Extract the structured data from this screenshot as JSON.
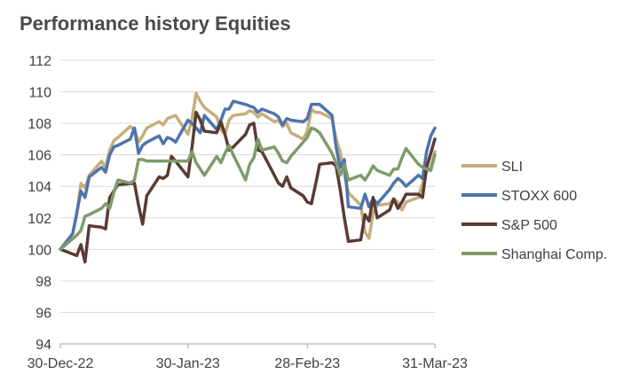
{
  "chart_data": {
    "type": "line",
    "title": "Performance history Equities",
    "xlabel": "",
    "ylabel": "",
    "ylim": [
      94,
      112
    ],
    "yticks": [
      94,
      96,
      98,
      100,
      102,
      104,
      106,
      108,
      110,
      112
    ],
    "xlim": [
      "2022-12-30",
      "2023-03-31"
    ],
    "xtick_labels": [
      "30-Dec-22",
      "30-Jan-23",
      "28-Feb-23",
      "31-Mar-23"
    ],
    "grid": "horizontal",
    "legend_position": "right",
    "series": [
      {
        "name": "SLI",
        "color": "#C5AE7C",
        "x": [
          "2022-12-30",
          "2023-01-02",
          "2023-01-03",
          "2023-01-04",
          "2023-01-05",
          "2023-01-06",
          "2023-01-09",
          "2023-01-10",
          "2023-01-11",
          "2023-01-12",
          "2023-01-13",
          "2023-01-16",
          "2023-01-17",
          "2023-01-18",
          "2023-01-19",
          "2023-01-20",
          "2023-01-23",
          "2023-01-24",
          "2023-01-25",
          "2023-01-26",
          "2023-01-27",
          "2023-01-30",
          "2023-01-31",
          "2023-02-01",
          "2023-02-02",
          "2023-02-03",
          "2023-02-06",
          "2023-02-07",
          "2023-02-08",
          "2023-02-09",
          "2023-02-10",
          "2023-02-13",
          "2023-02-14",
          "2023-02-15",
          "2023-02-16",
          "2023-02-17",
          "2023-02-20",
          "2023-02-21",
          "2023-02-22",
          "2023-02-23",
          "2023-02-24",
          "2023-02-27",
          "2023-02-28",
          "2023-03-01",
          "2023-03-02",
          "2023-03-03",
          "2023-03-06",
          "2023-03-07",
          "2023-03-08",
          "2023-03-09",
          "2023-03-10",
          "2023-03-13",
          "2023-03-14",
          "2023-03-15",
          "2023-03-16",
          "2023-03-17",
          "2023-03-20",
          "2023-03-21",
          "2023-03-22",
          "2023-03-23",
          "2023-03-24",
          "2023-03-27",
          "2023-03-28",
          "2023-03-29",
          "2023-03-30",
          "2023-03-31"
        ],
        "values": [
          100.0,
          101.0,
          102.2,
          104.2,
          103.9,
          104.7,
          105.6,
          105.2,
          106.3,
          106.9,
          107.1,
          107.8,
          107.6,
          106.8,
          107.2,
          107.7,
          108.1,
          107.9,
          108.3,
          108.4,
          108.5,
          107.3,
          108.3,
          109.9,
          109.4,
          109.0,
          108.4,
          107.6,
          107.3,
          108.2,
          108.5,
          108.6,
          108.8,
          108.7,
          108.4,
          108.6,
          108.1,
          108.2,
          107.8,
          108.0,
          107.4,
          107.0,
          107.5,
          108.9,
          108.7,
          108.7,
          108.3,
          107.0,
          106.2,
          104.7,
          103.6,
          102.8,
          101.1,
          100.7,
          102.3,
          102.8,
          102.9,
          103.2,
          103.0,
          102.5,
          103.0,
          103.3,
          104.2,
          105.0,
          105.2,
          106.2
        ]
      },
      {
        "name": "STOXX 600",
        "color": "#4F74AD",
        "x": [
          "2022-12-30",
          "2023-01-02",
          "2023-01-03",
          "2023-01-04",
          "2023-01-05",
          "2023-01-06",
          "2023-01-09",
          "2023-01-10",
          "2023-01-11",
          "2023-01-12",
          "2023-01-13",
          "2023-01-16",
          "2023-01-17",
          "2023-01-18",
          "2023-01-19",
          "2023-01-20",
          "2023-01-23",
          "2023-01-24",
          "2023-01-25",
          "2023-01-26",
          "2023-01-27",
          "2023-01-30",
          "2023-01-31",
          "2023-02-01",
          "2023-02-02",
          "2023-02-03",
          "2023-02-06",
          "2023-02-07",
          "2023-02-08",
          "2023-02-09",
          "2023-02-10",
          "2023-02-13",
          "2023-02-14",
          "2023-02-15",
          "2023-02-16",
          "2023-02-17",
          "2023-02-20",
          "2023-02-21",
          "2023-02-22",
          "2023-02-23",
          "2023-02-24",
          "2023-02-27",
          "2023-02-28",
          "2023-03-01",
          "2023-03-02",
          "2023-03-03",
          "2023-03-06",
          "2023-03-07",
          "2023-03-08",
          "2023-03-09",
          "2023-03-10",
          "2023-03-13",
          "2023-03-14",
          "2023-03-15",
          "2023-03-16",
          "2023-03-17",
          "2023-03-20",
          "2023-03-21",
          "2023-03-22",
          "2023-03-23",
          "2023-03-24",
          "2023-03-27",
          "2023-03-28",
          "2023-03-29",
          "2023-03-30",
          "2023-03-31"
        ],
        "values": [
          100.0,
          101.0,
          102.3,
          103.7,
          103.3,
          104.6,
          105.2,
          104.9,
          106.0,
          106.5,
          106.6,
          107.0,
          107.7,
          106.1,
          106.6,
          106.8,
          107.2,
          106.7,
          107.1,
          107.0,
          106.8,
          108.2,
          108.0,
          107.7,
          107.4,
          108.5,
          107.6,
          108.2,
          108.9,
          108.9,
          109.4,
          109.2,
          109.1,
          109.0,
          108.7,
          108.9,
          108.6,
          108.4,
          107.9,
          108.3,
          108.2,
          108.1,
          108.3,
          109.2,
          109.2,
          109.2,
          108.5,
          106.5,
          105.2,
          105.7,
          102.7,
          102.6,
          103.5,
          102.7,
          103.2,
          102.9,
          103.8,
          104.2,
          104.5,
          104.3,
          104.0,
          104.7,
          104.5,
          106.2,
          107.2,
          107.7
        ]
      },
      {
        "name": "S&P 500",
        "color": "#5B3A35",
        "x": [
          "2022-12-30",
          "2023-01-03",
          "2023-01-04",
          "2023-01-05",
          "2023-01-06",
          "2023-01-09",
          "2023-01-10",
          "2023-01-11",
          "2023-01-12",
          "2023-01-13",
          "2023-01-17",
          "2023-01-18",
          "2023-01-19",
          "2023-01-20",
          "2023-01-23",
          "2023-01-24",
          "2023-01-25",
          "2023-01-26",
          "2023-01-27",
          "2023-01-30",
          "2023-01-31",
          "2023-02-01",
          "2023-02-02",
          "2023-02-03",
          "2023-02-06",
          "2023-02-07",
          "2023-02-08",
          "2023-02-09",
          "2023-02-10",
          "2023-02-13",
          "2023-02-14",
          "2023-02-15",
          "2023-02-16",
          "2023-02-17",
          "2023-02-21",
          "2023-02-22",
          "2023-02-23",
          "2023-02-24",
          "2023-02-27",
          "2023-02-28",
          "2023-03-01",
          "2023-03-02",
          "2023-03-03",
          "2023-03-06",
          "2023-03-07",
          "2023-03-08",
          "2023-03-09",
          "2023-03-10",
          "2023-03-13",
          "2023-03-14",
          "2023-03-15",
          "2023-03-16",
          "2023-03-17",
          "2023-03-20",
          "2023-03-21",
          "2023-03-22",
          "2023-03-23",
          "2023-03-24",
          "2023-03-27",
          "2023-03-28",
          "2023-03-29",
          "2023-03-30",
          "2023-03-31"
        ],
        "values": [
          100.0,
          99.6,
          100.3,
          99.2,
          101.5,
          101.4,
          101.3,
          103.3,
          103.7,
          104.1,
          104.2,
          102.8,
          101.6,
          103.4,
          104.6,
          104.5,
          104.7,
          105.9,
          105.6,
          104.6,
          106.5,
          108.7,
          108.2,
          107.5,
          107.4,
          108.1,
          107.3,
          106.3,
          106.5,
          107.3,
          107.9,
          108.0,
          106.3,
          106.2,
          104.2,
          104.0,
          104.6,
          103.9,
          103.4,
          103.0,
          102.9,
          104.1,
          105.4,
          105.5,
          105.3,
          103.8,
          102.0,
          100.5,
          100.6,
          102.2,
          101.8,
          103.3,
          102.0,
          102.5,
          103.2,
          102.6,
          103.0,
          103.5,
          103.5,
          103.3,
          105.2,
          106.1,
          107.0
        ]
      },
      {
        "name": "Shanghai Comp.",
        "color": "#7E9C6A",
        "x": [
          "2022-12-30",
          "2023-01-03",
          "2023-01-04",
          "2023-01-05",
          "2023-01-06",
          "2023-01-09",
          "2023-01-10",
          "2023-01-11",
          "2023-01-12",
          "2023-01-13",
          "2023-01-16",
          "2023-01-17",
          "2023-01-18",
          "2023-01-19",
          "2023-01-20",
          "2023-01-30",
          "2023-01-31",
          "2023-02-01",
          "2023-02-02",
          "2023-02-03",
          "2023-02-06",
          "2023-02-07",
          "2023-02-08",
          "2023-02-09",
          "2023-02-10",
          "2023-02-13",
          "2023-02-14",
          "2023-02-15",
          "2023-02-16",
          "2023-02-17",
          "2023-02-20",
          "2023-02-21",
          "2023-02-22",
          "2023-02-23",
          "2023-02-24",
          "2023-02-27",
          "2023-02-28",
          "2023-03-01",
          "2023-03-02",
          "2023-03-03",
          "2023-03-06",
          "2023-03-07",
          "2023-03-08",
          "2023-03-09",
          "2023-03-10",
          "2023-03-13",
          "2023-03-14",
          "2023-03-15",
          "2023-03-16",
          "2023-03-17",
          "2023-03-20",
          "2023-03-21",
          "2023-03-22",
          "2023-03-23",
          "2023-03-24",
          "2023-03-27",
          "2023-03-28",
          "2023-03-29",
          "2023-03-30",
          "2023-03-31"
        ],
        "values": [
          100.0,
          100.9,
          101.2,
          102.1,
          102.2,
          102.6,
          102.9,
          102.6,
          103.6,
          104.4,
          104.2,
          104.4,
          105.7,
          105.7,
          105.6,
          105.6,
          106.2,
          105.5,
          105.1,
          104.7,
          105.9,
          105.5,
          106.1,
          106.6,
          106.0,
          104.4,
          105.4,
          105.8,
          107.0,
          106.3,
          106.5,
          106.1,
          105.6,
          105.5,
          105.9,
          106.8,
          107.1,
          107.7,
          107.6,
          107.4,
          106.1,
          105.5,
          104.7,
          105.4,
          104.4,
          104.7,
          104.4,
          104.8,
          105.3,
          105.0,
          104.7,
          105.1,
          105.1,
          105.8,
          106.4,
          105.4,
          105.2,
          105.1,
          105.0,
          106.0
        ]
      }
    ]
  }
}
